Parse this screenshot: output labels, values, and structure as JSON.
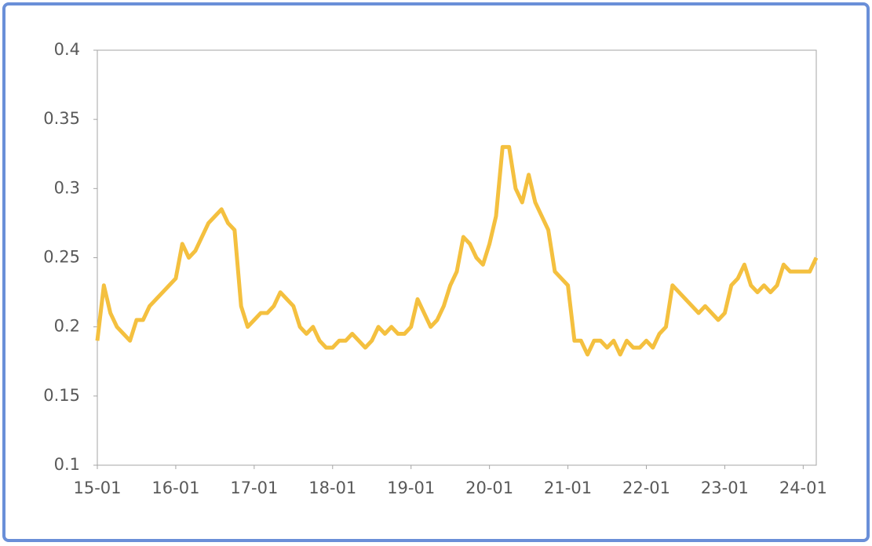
{
  "chart_data": {
    "type": "line",
    "x": [
      "15-01",
      "15-02",
      "15-03",
      "15-04",
      "15-05",
      "15-06",
      "15-07",
      "15-08",
      "15-09",
      "15-10",
      "15-11",
      "15-12",
      "16-01",
      "16-02",
      "16-03",
      "16-04",
      "16-05",
      "16-06",
      "16-07",
      "16-08",
      "16-09",
      "16-10",
      "16-11",
      "16-12",
      "17-01",
      "17-02",
      "17-03",
      "17-04",
      "17-05",
      "17-06",
      "17-07",
      "17-08",
      "17-09",
      "17-10",
      "17-11",
      "17-12",
      "18-01",
      "18-02",
      "18-03",
      "18-04",
      "18-05",
      "18-06",
      "18-07",
      "18-08",
      "18-09",
      "18-10",
      "18-11",
      "18-12",
      "19-01",
      "19-02",
      "19-03",
      "19-04",
      "19-05",
      "19-06",
      "19-07",
      "19-08",
      "19-09",
      "19-10",
      "19-11",
      "19-12",
      "20-01",
      "20-02",
      "20-03",
      "20-04",
      "20-05",
      "20-06",
      "20-07",
      "20-08",
      "20-09",
      "20-10",
      "20-11",
      "20-12",
      "21-01",
      "21-02",
      "21-03",
      "21-04",
      "21-05",
      "21-06",
      "21-07",
      "21-08",
      "21-09",
      "21-10",
      "21-11",
      "21-12",
      "22-01",
      "22-02",
      "22-03",
      "22-04",
      "22-05",
      "22-06",
      "22-07",
      "22-08",
      "22-09",
      "22-10",
      "22-11",
      "22-12",
      "23-01",
      "23-02",
      "23-03",
      "23-04",
      "23-05",
      "23-06",
      "23-07",
      "23-08",
      "23-09",
      "23-10",
      "23-11",
      "23-12",
      "24-01",
      "24-02",
      "24-03"
    ],
    "series": [
      {
        "color": "#f4c03f",
        "values": [
          0.19,
          0.23,
          0.21,
          0.2,
          0.195,
          0.19,
          0.205,
          0.205,
          0.215,
          0.22,
          0.225,
          0.23,
          0.235,
          0.26,
          0.25,
          0.255,
          0.265,
          0.275,
          0.28,
          0.285,
          0.275,
          0.27,
          0.215,
          0.2,
          0.205,
          0.21,
          0.21,
          0.215,
          0.225,
          0.22,
          0.215,
          0.2,
          0.195,
          0.2,
          0.19,
          0.185,
          0.185,
          0.19,
          0.19,
          0.195,
          0.19,
          0.185,
          0.19,
          0.2,
          0.195,
          0.2,
          0.195,
          0.195,
          0.2,
          0.22,
          0.21,
          0.2,
          0.205,
          0.215,
          0.23,
          0.24,
          0.265,
          0.26,
          0.25,
          0.245,
          0.26,
          0.28,
          0.33,
          0.33,
          0.3,
          0.29,
          0.31,
          0.29,
          0.28,
          0.27,
          0.24,
          0.235,
          0.23,
          0.19,
          0.19,
          0.18,
          0.19,
          0.19,
          0.185,
          0.19,
          0.18,
          0.19,
          0.185,
          0.185,
          0.19,
          0.185,
          0.195,
          0.2,
          0.23,
          0.225,
          0.22,
          0.215,
          0.21,
          0.215,
          0.21,
          0.205,
          0.21,
          0.23,
          0.235,
          0.245,
          0.23,
          0.225,
          0.23,
          0.225,
          0.23,
          0.245,
          0.24,
          0.24,
          0.24,
          0.24,
          0.25
        ]
      }
    ],
    "xlim": [
      "15-01",
      "24-03"
    ],
    "xticks": [
      "15-01",
      "16-01",
      "17-01",
      "18-01",
      "19-01",
      "20-01",
      "21-01",
      "22-01",
      "23-01",
      "24-01"
    ],
    "ylim": [
      0.1,
      0.4
    ],
    "yticks": [
      0.1,
      0.15,
      0.2,
      0.25,
      0.3,
      0.35,
      0.4
    ]
  }
}
